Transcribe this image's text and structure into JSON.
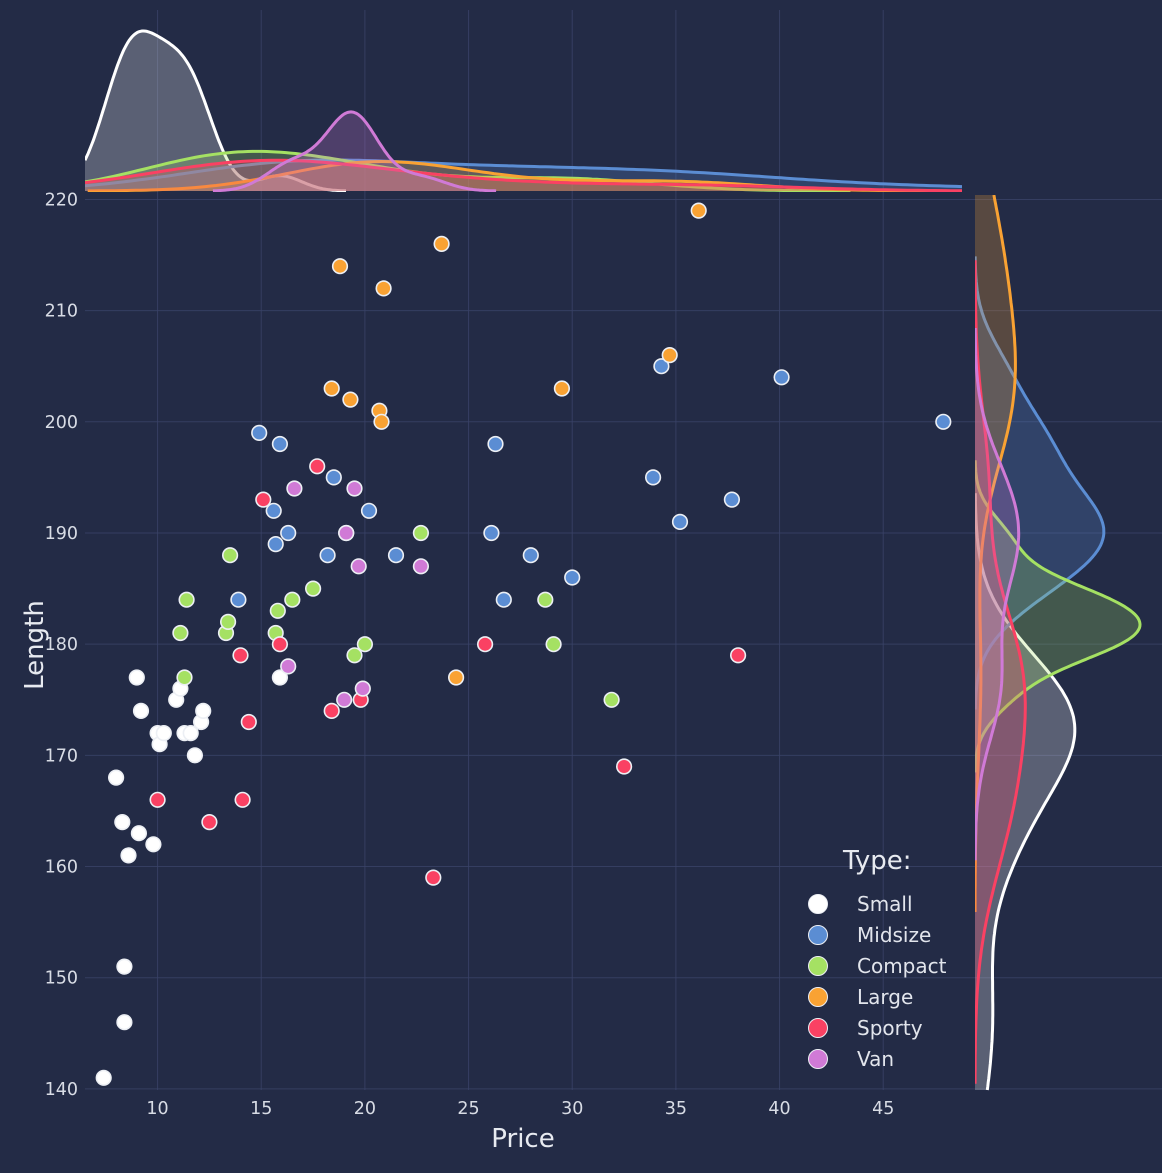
{
  "chart_data": {
    "type": "scatter",
    "title": "",
    "xlabel": "Price",
    "ylabel": "Length",
    "x_ticks": [
      10,
      15,
      20,
      25,
      30,
      35,
      40,
      45
    ],
    "y_ticks": [
      140,
      150,
      160,
      170,
      180,
      190,
      200,
      210,
      220
    ],
    "xlim": [
      6.5,
      48.8
    ],
    "ylim": [
      139.9,
      220.4
    ],
    "grid": true,
    "marginals": {
      "top": "kde-of-price-by-type",
      "right": "kde-of-length-by-type",
      "normalization": "common",
      "bandwidth": "scott",
      "cut": 3
    },
    "legend": {
      "title": "Type:",
      "position": "lower-right"
    },
    "series": [
      {
        "name": "Small",
        "color": "#ffffff",
        "points": [
          [
            7.4,
            141
          ],
          [
            8.0,
            168
          ],
          [
            8.3,
            164
          ],
          [
            8.4,
            151
          ],
          [
            8.4,
            146
          ],
          [
            8.6,
            161
          ],
          [
            9.0,
            177
          ],
          [
            9.1,
            163
          ],
          [
            9.2,
            174
          ],
          [
            9.8,
            162
          ],
          [
            10.0,
            172
          ],
          [
            10.1,
            171
          ],
          [
            10.3,
            172
          ],
          [
            10.9,
            175
          ],
          [
            11.1,
            176
          ],
          [
            11.3,
            172
          ],
          [
            11.6,
            172
          ],
          [
            11.8,
            170
          ],
          [
            12.1,
            173
          ],
          [
            12.2,
            174
          ],
          [
            15.9,
            177
          ]
        ]
      },
      {
        "name": "Midsize",
        "color": "#5b8dd3",
        "points": [
          [
            13.9,
            184
          ],
          [
            14.9,
            199
          ],
          [
            15.6,
            192
          ],
          [
            15.7,
            189
          ],
          [
            15.9,
            198
          ],
          [
            16.3,
            190
          ],
          [
            18.2,
            188
          ],
          [
            18.5,
            195
          ],
          [
            20.2,
            192
          ],
          [
            21.5,
            188
          ],
          [
            26.1,
            190
          ],
          [
            26.3,
            198
          ],
          [
            26.7,
            184
          ],
          [
            28.0,
            188
          ],
          [
            30.0,
            186
          ],
          [
            33.9,
            195
          ],
          [
            34.3,
            205
          ],
          [
            35.2,
            191
          ],
          [
            37.7,
            193
          ],
          [
            40.1,
            204
          ],
          [
            47.9,
            200
          ]
        ]
      },
      {
        "name": "Compact",
        "color": "#a5e163",
        "points": [
          [
            11.1,
            181
          ],
          [
            11.3,
            177
          ],
          [
            11.4,
            184
          ],
          [
            13.3,
            181
          ],
          [
            13.4,
            182
          ],
          [
            13.5,
            188
          ],
          [
            15.7,
            181
          ],
          [
            15.8,
            183
          ],
          [
            16.5,
            184
          ],
          [
            17.5,
            185
          ],
          [
            19.5,
            179
          ],
          [
            20.0,
            180
          ],
          [
            22.7,
            190
          ],
          [
            28.7,
            184
          ],
          [
            29.1,
            180
          ],
          [
            31.9,
            175
          ]
        ]
      },
      {
        "name": "Large",
        "color": "#f9a233",
        "points": [
          [
            18.4,
            203
          ],
          [
            18.8,
            214
          ],
          [
            19.3,
            202
          ],
          [
            20.7,
            201
          ],
          [
            20.8,
            200
          ],
          [
            20.9,
            212
          ],
          [
            23.7,
            216
          ],
          [
            24.4,
            177
          ],
          [
            29.5,
            203
          ],
          [
            34.7,
            206
          ],
          [
            36.1,
            219
          ]
        ]
      },
      {
        "name": "Sporty",
        "color": "#fa4163",
        "points": [
          [
            10.0,
            166
          ],
          [
            12.5,
            164
          ],
          [
            14.0,
            179
          ],
          [
            14.1,
            166
          ],
          [
            14.4,
            173
          ],
          [
            15.1,
            193
          ],
          [
            15.9,
            180
          ],
          [
            17.7,
            196
          ],
          [
            18.4,
            174
          ],
          [
            19.8,
            175
          ],
          [
            23.3,
            159
          ],
          [
            25.8,
            180
          ],
          [
            32.5,
            169
          ],
          [
            38.0,
            179
          ]
        ]
      },
      {
        "name": "Van",
        "color": "#d07ad6",
        "points": [
          [
            16.3,
            178
          ],
          [
            16.6,
            194
          ],
          [
            19.0,
            175
          ],
          [
            19.1,
            190
          ],
          [
            19.1,
            190
          ],
          [
            19.5,
            194
          ],
          [
            19.7,
            187
          ],
          [
            19.9,
            176
          ],
          [
            22.7,
            187
          ]
        ]
      }
    ]
  },
  "colors": {
    "background": "#232b46",
    "grid": "#3a4368",
    "tick_label": "#d8dce5",
    "axis_label": "#e7eaf0",
    "marker_stroke": "#eceff4",
    "legend_text": "#e2e5ec"
  }
}
